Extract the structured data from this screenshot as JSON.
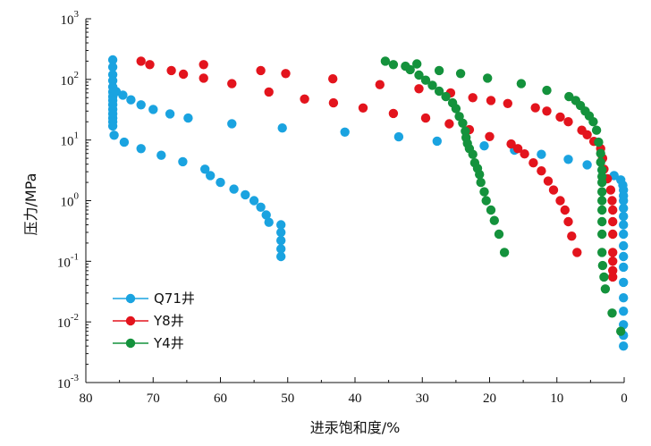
{
  "chart_data": {
    "type": "scatter",
    "title": "",
    "xlabel": "进汞饱和度/%",
    "ylabel": "压力/MPa",
    "x_axis": {
      "range": [
        80,
        0
      ],
      "reversed": true,
      "ticks": [
        80,
        70,
        60,
        50,
        40,
        30,
        20,
        10,
        0
      ],
      "tick_labels": [
        "80",
        "70",
        "60",
        "50",
        "40",
        "30",
        "20",
        "10",
        "0"
      ]
    },
    "y_axis": {
      "scale": "log",
      "range": [
        0.001,
        1000
      ],
      "ticks": [
        0.001,
        0.01,
        0.1,
        1,
        10,
        100,
        1000
      ],
      "tick_labels": [
        {
          "base": "10",
          "exp": "-3"
        },
        {
          "base": "10",
          "exp": "-2"
        },
        {
          "base": "10",
          "exp": "-1"
        },
        {
          "base": "10",
          "exp": "0"
        },
        {
          "base": "10",
          "exp": "1"
        },
        {
          "base": "10",
          "exp": "2"
        },
        {
          "base": "10",
          "exp": "3"
        }
      ]
    },
    "grid": false,
    "legend_position": "bottom-left",
    "series": [
      {
        "name": "Q71井",
        "color": "#1aa3e0",
        "points": [
          [
            76,
            210
          ],
          [
            76,
            160
          ],
          [
            76,
            120
          ],
          [
            76,
            95
          ],
          [
            76,
            75
          ],
          [
            76,
            62
          ],
          [
            76,
            52
          ],
          [
            76,
            45
          ],
          [
            76,
            38
          ],
          [
            76,
            32
          ],
          [
            76,
            27
          ],
          [
            76,
            23
          ],
          [
            76,
            20
          ],
          [
            76,
            17
          ],
          [
            75.5,
            63
          ],
          [
            74.5,
            55
          ],
          [
            73.3,
            46
          ],
          [
            71.8,
            38
          ],
          [
            70,
            32
          ],
          [
            67.5,
            27
          ],
          [
            64.8,
            23
          ],
          [
            58.3,
            18.6
          ],
          [
            50.8,
            15.8
          ],
          [
            41.5,
            13.5
          ],
          [
            33.5,
            11.3
          ],
          [
            27.8,
            9.6
          ],
          [
            20.8,
            8
          ],
          [
            16.3,
            6.8
          ],
          [
            12.3,
            5.8
          ],
          [
            8.3,
            4.8
          ],
          [
            5.5,
            3.9
          ],
          [
            3.3,
            3.2
          ],
          [
            1.5,
            2.6
          ],
          [
            0.5,
            2.2
          ],
          [
            0.2,
            1.8
          ],
          [
            0.1,
            1.5
          ],
          [
            0.1,
            1.2
          ],
          [
            0.1,
            1
          ],
          [
            0.1,
            0.75
          ],
          [
            0.1,
            0.55
          ],
          [
            0.1,
            0.4
          ],
          [
            0.1,
            0.28
          ],
          [
            0.1,
            0.18
          ],
          [
            0.1,
            0.12
          ],
          [
            0.1,
            0.08
          ],
          [
            0.1,
            0.045
          ],
          [
            0.1,
            0.025
          ],
          [
            0.1,
            0.015
          ],
          [
            0.1,
            0.009
          ],
          [
            0.1,
            0.006
          ],
          [
            0.1,
            0.004
          ],
          [
            75.8,
            12
          ],
          [
            74.3,
            9.2
          ],
          [
            71.8,
            7.2
          ],
          [
            68.8,
            5.6
          ],
          [
            65.6,
            4.4
          ],
          [
            62.3,
            3.3
          ],
          [
            61.5,
            2.6
          ],
          [
            60,
            2
          ],
          [
            58,
            1.55
          ],
          [
            56.3,
            1.25
          ],
          [
            55,
            1
          ],
          [
            54,
            0.78
          ],
          [
            53.2,
            0.58
          ],
          [
            52.8,
            0.44
          ],
          [
            51,
            0.4
          ],
          [
            51,
            0.3
          ],
          [
            51,
            0.22
          ],
          [
            51,
            0.16
          ],
          [
            51,
            0.12
          ]
        ]
      },
      {
        "name": "Y8井",
        "color": "#e3141d",
        "points": [
          [
            71.8,
            200
          ],
          [
            70.5,
            175
          ],
          [
            67.3,
            140
          ],
          [
            65.5,
            122
          ],
          [
            62.5,
            105
          ],
          [
            58.3,
            85
          ],
          [
            52.8,
            62
          ],
          [
            47.5,
            47.5
          ],
          [
            43.2,
            41
          ],
          [
            38.8,
            33.8
          ],
          [
            34.3,
            27.5
          ],
          [
            29.5,
            23
          ],
          [
            26,
            18.5
          ],
          [
            23,
            14.8
          ],
          [
            20,
            11.4
          ],
          [
            16.8,
            8.6
          ],
          [
            15.8,
            7.2
          ],
          [
            14.8,
            5.9
          ],
          [
            13.5,
            4.2
          ],
          [
            12.3,
            3.1
          ],
          [
            11.3,
            2.1
          ],
          [
            10.5,
            1.5
          ],
          [
            9.5,
            1
          ],
          [
            8.8,
            0.7
          ],
          [
            8.3,
            0.45
          ],
          [
            7.8,
            0.26
          ],
          [
            7,
            0.14
          ],
          [
            62.5,
            175
          ],
          [
            54,
            140
          ],
          [
            50.3,
            125
          ],
          [
            43.3,
            102
          ],
          [
            36.3,
            82
          ],
          [
            30.5,
            70
          ],
          [
            25.8,
            60
          ],
          [
            22.5,
            50
          ],
          [
            19.8,
            45
          ],
          [
            17.3,
            40
          ],
          [
            13.2,
            34
          ],
          [
            11.5,
            30
          ],
          [
            9.5,
            24
          ],
          [
            8.3,
            20
          ],
          [
            6.3,
            14.5
          ],
          [
            5.5,
            12.2
          ],
          [
            4.5,
            9.5
          ],
          [
            3.5,
            7.2
          ],
          [
            3.2,
            5
          ],
          [
            3,
            3.3
          ],
          [
            2.5,
            2.3
          ],
          [
            2,
            1.5
          ],
          [
            1.8,
            1
          ],
          [
            1.7,
            0.7
          ],
          [
            1.7,
            0.45
          ],
          [
            1.7,
            0.28
          ],
          [
            1.7,
            0.14
          ],
          [
            1.7,
            0.1
          ],
          [
            1.7,
            0.07
          ],
          [
            1.7,
            0.055
          ]
        ]
      },
      {
        "name": "Y4井",
        "color": "#14923c",
        "points": [
          [
            35.5,
            200
          ],
          [
            34.3,
            175
          ],
          [
            32.5,
            165
          ],
          [
            30.8,
            180
          ],
          [
            31.8,
            145
          ],
          [
            30.5,
            118
          ],
          [
            29.5,
            97
          ],
          [
            28.5,
            80
          ],
          [
            27.5,
            64
          ],
          [
            26.5,
            52
          ],
          [
            25.5,
            41
          ],
          [
            25,
            33
          ],
          [
            24.5,
            24.5
          ],
          [
            24,
            19
          ],
          [
            23.6,
            14
          ],
          [
            23.5,
            11
          ],
          [
            23.3,
            8.8
          ],
          [
            23,
            7.2
          ],
          [
            22.5,
            5.8
          ],
          [
            22.2,
            4.2
          ],
          [
            21.8,
            3.4
          ],
          [
            21.5,
            2.7
          ],
          [
            21.3,
            2
          ],
          [
            20.8,
            1.4
          ],
          [
            20.5,
            1
          ],
          [
            19.8,
            0.7
          ],
          [
            19.3,
            0.47
          ],
          [
            18.6,
            0.28
          ],
          [
            17.8,
            0.14
          ],
          [
            27.5,
            140
          ],
          [
            24.3,
            125
          ],
          [
            20.3,
            105
          ],
          [
            15.3,
            85
          ],
          [
            11.5,
            66
          ],
          [
            8.2,
            52
          ],
          [
            7.2,
            45
          ],
          [
            6.5,
            37
          ],
          [
            5.8,
            30
          ],
          [
            5.2,
            25
          ],
          [
            4.6,
            20
          ],
          [
            4.1,
            14.5
          ],
          [
            3.8,
            9.2
          ],
          [
            3.5,
            6
          ],
          [
            3.5,
            4.3
          ],
          [
            3.3,
            3.2
          ],
          [
            3.3,
            2.5
          ],
          [
            3.3,
            2
          ],
          [
            3.3,
            1.4
          ],
          [
            3.3,
            1
          ],
          [
            3.3,
            0.7
          ],
          [
            3.3,
            0.45
          ],
          [
            3.3,
            0.28
          ],
          [
            3.3,
            0.14
          ],
          [
            3.2,
            0.085
          ],
          [
            3,
            0.055
          ],
          [
            2.8,
            0.035
          ],
          [
            1.8,
            0.014
          ],
          [
            0.5,
            0.007
          ]
        ]
      }
    ]
  }
}
